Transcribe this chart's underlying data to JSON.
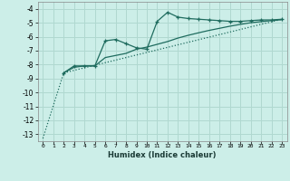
{
  "title": "",
  "xlabel": "Humidex (Indice chaleur)",
  "bg_color": "#cceee8",
  "grid_color": "#b0d8d0",
  "line_color": "#1e6b5e",
  "xlim": [
    -0.5,
    23.5
  ],
  "ylim": [
    -13.5,
    -3.5
  ],
  "yticks": [
    -13,
    -12,
    -11,
    -10,
    -9,
    -8,
    -7,
    -6,
    -5,
    -4
  ],
  "xticks": [
    0,
    1,
    2,
    3,
    4,
    5,
    6,
    7,
    8,
    9,
    10,
    11,
    12,
    13,
    14,
    15,
    16,
    17,
    18,
    19,
    20,
    21,
    22,
    23
  ],
  "line1_x": [
    2,
    3,
    4,
    5,
    6,
    7,
    8,
    9,
    10,
    11,
    12,
    13,
    14,
    15,
    16,
    17,
    18,
    19,
    20,
    21,
    22,
    23
  ],
  "line1_y": [
    -8.6,
    -8.1,
    -8.1,
    -8.1,
    -6.3,
    -6.2,
    -6.5,
    -6.8,
    -6.9,
    -4.9,
    -4.25,
    -4.6,
    -4.7,
    -4.75,
    -4.8,
    -4.85,
    -4.9,
    -4.9,
    -4.85,
    -4.8,
    -4.8,
    -4.75
  ],
  "line2_x": [
    2,
    3,
    4,
    5,
    6,
    7,
    8,
    9,
    10,
    11,
    12,
    13,
    14,
    15,
    16,
    17,
    18,
    19,
    20,
    21,
    22,
    23
  ],
  "line2_y": [
    -8.6,
    -8.2,
    -8.1,
    -8.1,
    -7.5,
    -7.35,
    -7.2,
    -6.9,
    -6.75,
    -6.55,
    -6.35,
    -6.1,
    -5.9,
    -5.72,
    -5.55,
    -5.4,
    -5.25,
    -5.12,
    -5.0,
    -4.92,
    -4.85,
    -4.78
  ],
  "line3_x": [
    0,
    2,
    23
  ],
  "line3_y": [
    -13.3,
    -8.6,
    -4.75
  ]
}
